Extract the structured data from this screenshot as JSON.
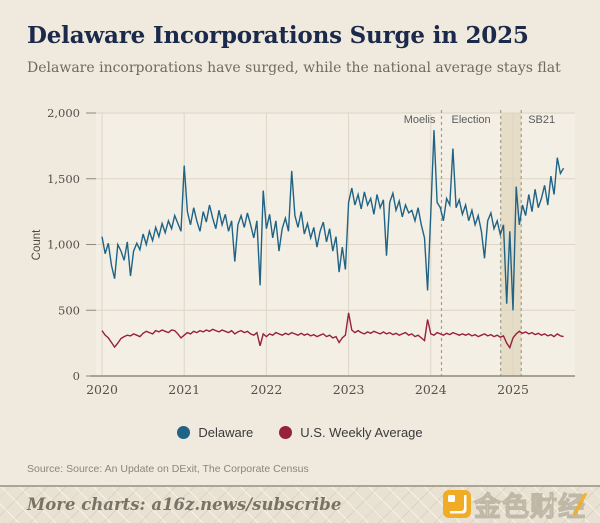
{
  "header": {
    "title": "Delaware Incorporations Surge in 2025",
    "subtitle": "Delaware incorporations have surged, while the national average stays flat"
  },
  "chart_data": {
    "type": "line",
    "title": "Delaware Incorporations Surge in 2025",
    "xlabel": "",
    "ylabel": "Count",
    "ylim": [
      0,
      2000
    ],
    "xlim": [
      2019.93,
      2025.75
    ],
    "grid": true,
    "legend_position": "bottom",
    "colors": {
      "plot_bg": "#F4EFE4",
      "page_bg": "#EFE9DE",
      "gridline": "#DDD5C5",
      "axis": "#8F8A7A",
      "tick_text": "#55504A",
      "annotation_line": "#A59D8E",
      "annotation_text": "#5C5C5C",
      "band_fill": "#E5DDC6",
      "delaware": "#1F6386",
      "us_average": "#97203C"
    },
    "y_ticks": [
      [
        0,
        "0"
      ],
      [
        500,
        "500"
      ],
      [
        1000,
        "1,000"
      ],
      [
        1500,
        "1,500"
      ],
      [
        2000,
        "2,000"
      ]
    ],
    "x_ticks": [
      [
        2020,
        "2020"
      ],
      [
        2021,
        "2021"
      ],
      [
        2022,
        "2022"
      ],
      [
        2023,
        "2023"
      ],
      [
        2024,
        "2024"
      ],
      [
        2025,
        "2025"
      ]
    ],
    "annotations": [
      {
        "label": "Moelis",
        "year": 2024.13,
        "label_side": "left"
      },
      {
        "label": "Election",
        "year": 2024.85,
        "label_side": "left-center"
      },
      {
        "label": "SB21",
        "year": 2025.1,
        "label_side": "right"
      }
    ],
    "highlight_band": {
      "from": 2024.85,
      "to": 2025.1
    },
    "x_start": 2020.0,
    "x_step_years": 0.038461,
    "series": [
      {
        "name": "Delaware",
        "color": "#1F6386",
        "values": [
          1060,
          930,
          1010,
          840,
          740,
          1000,
          950,
          880,
          1020,
          760,
          950,
          1010,
          960,
          1080,
          1000,
          1100,
          1030,
          1130,
          1060,
          1160,
          1090,
          1180,
          1120,
          1220,
          1160,
          1100,
          1600,
          1250,
          1150,
          1280,
          1180,
          1100,
          1250,
          1170,
          1300,
          1200,
          1120,
          1260,
          1150,
          1230,
          1100,
          1180,
          870,
          1150,
          1220,
          1130,
          1240,
          1150,
          1050,
          1180,
          690,
          1410,
          1120,
          1230,
          1050,
          1180,
          950,
          1120,
          1200,
          1100,
          1560,
          1220,
          1130,
          1250,
          1080,
          1160,
          1050,
          1130,
          980,
          1100,
          1170,
          1020,
          1120,
          950,
          1060,
          790,
          980,
          810,
          1320,
          1430,
          1300,
          1380,
          1270,
          1400,
          1300,
          1350,
          1230,
          1380,
          1280,
          1340,
          915,
          1320,
          1390,
          1260,
          1330,
          1210,
          1300,
          1240,
          1260,
          1180,
          1280,
          1150,
          1050,
          650,
          1240,
          1870,
          1320,
          1280,
          1180,
          1350,
          1300,
          1730,
          1280,
          1340,
          1230,
          1300,
          1180,
          1260,
          1150,
          1220,
          1100,
          895,
          1180,
          1240,
          1120,
          1180,
          1075,
          1150,
          550,
          1100,
          500,
          1440,
          1150,
          1300,
          1220,
          1380,
          1250,
          1420,
          1280,
          1350,
          1450,
          1300,
          1520,
          1380,
          1660,
          1540,
          1580
        ]
      },
      {
        "name": "U.S. Weekly Average",
        "color": "#97203C",
        "values": [
          345,
          310,
          290,
          255,
          220,
          250,
          285,
          300,
          310,
          305,
          320,
          310,
          300,
          325,
          340,
          330,
          320,
          345,
          335,
          350,
          340,
          330,
          350,
          345,
          320,
          290,
          310,
          330,
          320,
          340,
          330,
          345,
          335,
          350,
          340,
          355,
          345,
          335,
          350,
          340,
          330,
          345,
          320,
          335,
          345,
          330,
          340,
          320,
          310,
          330,
          230,
          320,
          300,
          320,
          310,
          330,
          320,
          310,
          325,
          315,
          330,
          320,
          310,
          325,
          310,
          320,
          305,
          315,
          300,
          310,
          320,
          300,
          310,
          290,
          300,
          255,
          290,
          310,
          480,
          350,
          330,
          345,
          330,
          320,
          335,
          325,
          340,
          330,
          320,
          335,
          320,
          330,
          315,
          325,
          310,
          320,
          330,
          310,
          320,
          300,
          310,
          290,
          270,
          430,
          320,
          310,
          330,
          320,
          310,
          325,
          315,
          330,
          320,
          310,
          320,
          310,
          320,
          305,
          315,
          300,
          310,
          320,
          305,
          315,
          300,
          310,
          295,
          305,
          250,
          215,
          290,
          320,
          340,
          325,
          335,
          320,
          330,
          315,
          325,
          310,
          320,
          305,
          315,
          300,
          320,
          305,
          300
        ]
      }
    ]
  },
  "legend": {
    "items": [
      {
        "label": "Delaware",
        "color": "#1F6386"
      },
      {
        "label": "U.S. Weekly Average",
        "color": "#97203C"
      }
    ]
  },
  "footer": {
    "source": "Source: Source: An Update on DExit, The Corporate Census",
    "more_charts": "More charts: a16z.news/subscribe",
    "watermark_text": "金色财经",
    "watermark_color": "#F2A714"
  }
}
